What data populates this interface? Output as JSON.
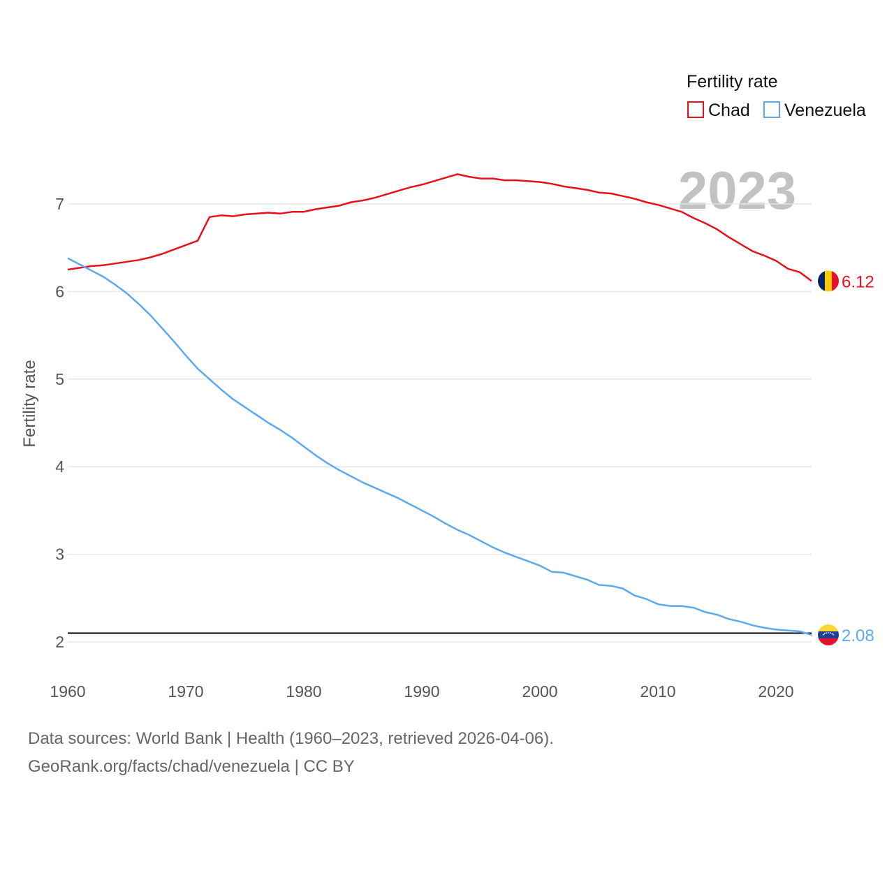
{
  "chart_data": {
    "type": "line",
    "year_stamp": "2023",
    "ylabel": "Fertility rate",
    "xlabel": "",
    "legend": {
      "title": "Fertility rate",
      "placement": "top-right"
    },
    "xlim": [
      1960,
      2023
    ],
    "ylim": [
      1.9,
      7.6
    ],
    "x_ticks": [
      1960,
      1970,
      1980,
      1990,
      2000,
      2010,
      2020
    ],
    "y_ticks": [
      2,
      3,
      4,
      5,
      6,
      7
    ],
    "reference_line": {
      "y": 2.1,
      "color": "#000000"
    },
    "x": [
      1960,
      1961,
      1962,
      1963,
      1964,
      1965,
      1966,
      1967,
      1968,
      1969,
      1970,
      1971,
      1972,
      1973,
      1974,
      1975,
      1976,
      1977,
      1978,
      1979,
      1980,
      1981,
      1982,
      1983,
      1984,
      1985,
      1986,
      1987,
      1988,
      1989,
      1990,
      1991,
      1992,
      1993,
      1994,
      1995,
      1996,
      1997,
      1998,
      1999,
      2000,
      2001,
      2002,
      2003,
      2004,
      2005,
      2006,
      2007,
      2008,
      2009,
      2010,
      2011,
      2012,
      2013,
      2014,
      2015,
      2016,
      2017,
      2018,
      2019,
      2020,
      2021,
      2022,
      2023
    ],
    "series": [
      {
        "name": "Chad",
        "color": "#e8111b",
        "end_label": "6.12",
        "flag": "chad-flag",
        "values": [
          6.25,
          6.27,
          6.29,
          6.3,
          6.32,
          6.34,
          6.36,
          6.39,
          6.43,
          6.48,
          6.53,
          6.58,
          6.85,
          6.87,
          6.86,
          6.88,
          6.89,
          6.9,
          6.89,
          6.91,
          6.91,
          6.94,
          6.96,
          6.98,
          7.02,
          7.04,
          7.07,
          7.11,
          7.15,
          7.19,
          7.22,
          7.26,
          7.3,
          7.34,
          7.31,
          7.29,
          7.29,
          7.27,
          7.27,
          7.26,
          7.25,
          7.23,
          7.2,
          7.18,
          7.16,
          7.13,
          7.12,
          7.09,
          7.06,
          7.02,
          6.99,
          6.95,
          6.91,
          6.84,
          6.78,
          6.71,
          6.62,
          6.54,
          6.46,
          6.41,
          6.35,
          6.26,
          6.22,
          6.12
        ]
      },
      {
        "name": "Venezuela",
        "color": "#5ea9ec",
        "end_label": "2.08",
        "flag": "venezuela-flag",
        "values": [
          6.38,
          6.31,
          6.24,
          6.17,
          6.08,
          5.98,
          5.86,
          5.73,
          5.58,
          5.43,
          5.27,
          5.12,
          5.0,
          4.88,
          4.77,
          4.68,
          4.59,
          4.5,
          4.42,
          4.33,
          4.23,
          4.13,
          4.04,
          3.96,
          3.89,
          3.82,
          3.76,
          3.7,
          3.64,
          3.57,
          3.5,
          3.43,
          3.35,
          3.28,
          3.22,
          3.15,
          3.08,
          3.02,
          2.97,
          2.92,
          2.87,
          2.8,
          2.79,
          2.75,
          2.71,
          2.65,
          2.64,
          2.61,
          2.53,
          2.49,
          2.43,
          2.41,
          2.41,
          2.39,
          2.34,
          2.31,
          2.26,
          2.23,
          2.19,
          2.16,
          2.14,
          2.13,
          2.12,
          2.08
        ]
      }
    ]
  },
  "footer": {
    "sources": "Data sources: World Bank | Health (1960–2023, retrieved 2026-04-06).",
    "credit": "GeoRank.org/facts/chad/venezuela | CC BY"
  }
}
